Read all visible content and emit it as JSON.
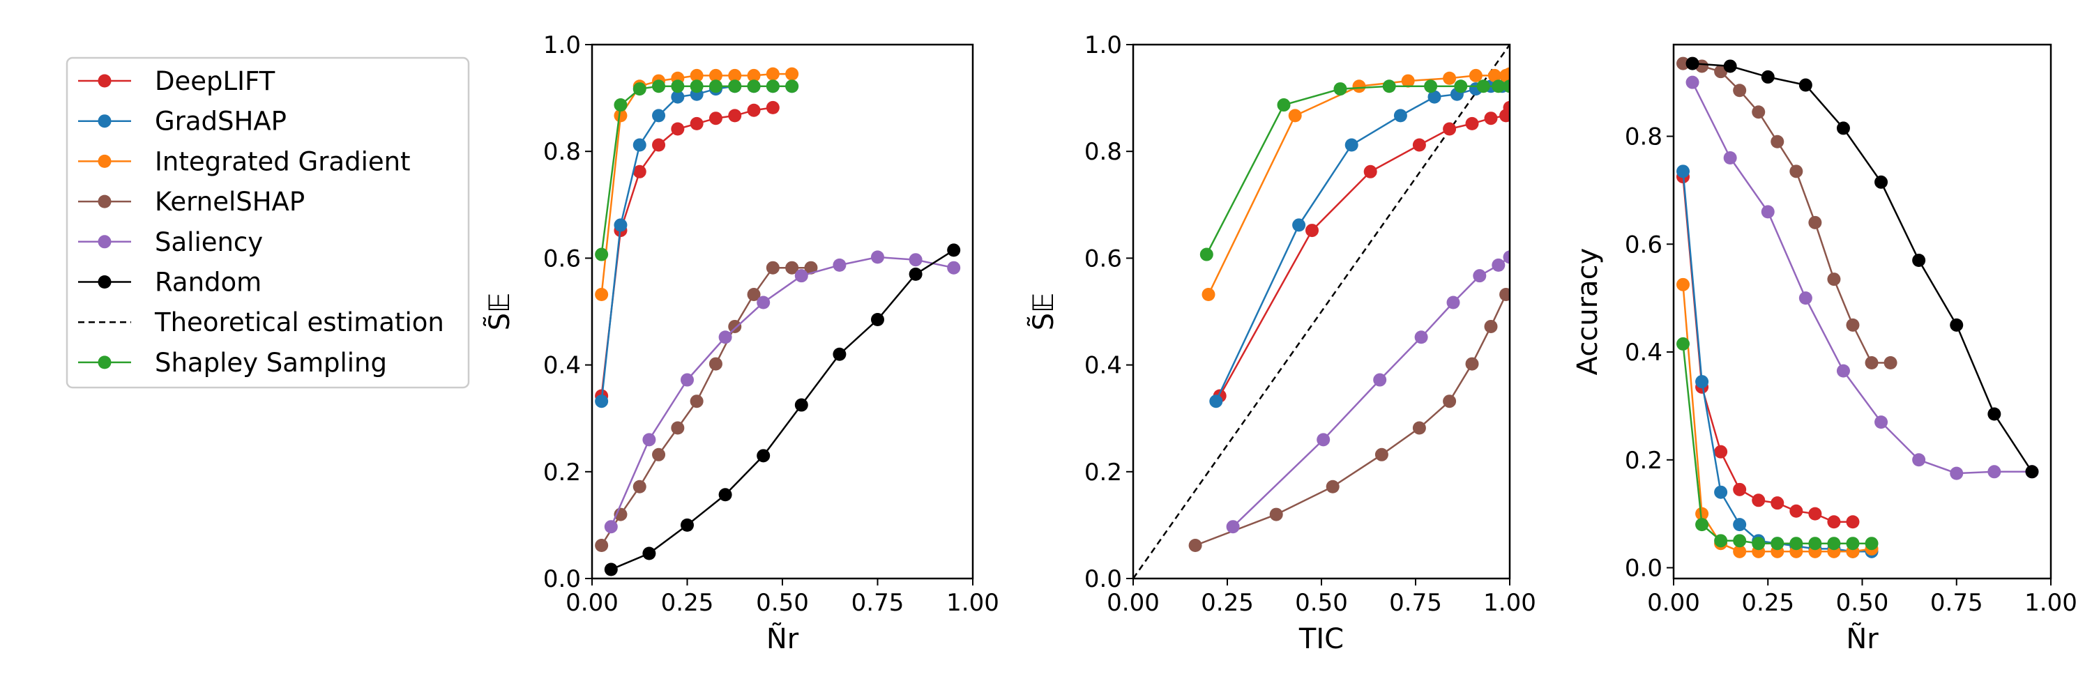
{
  "legend": {
    "entries": [
      {
        "label": "DeepLIFT",
        "color": "#d62728",
        "style": "marker"
      },
      {
        "label": "GradSHAP",
        "color": "#1f77b4",
        "style": "marker"
      },
      {
        "label": "Integrated Gradient",
        "color": "#ff7f0e",
        "style": "marker"
      },
      {
        "label": "KernelSHAP",
        "color": "#8c564b",
        "style": "marker"
      },
      {
        "label": "Saliency",
        "color": "#9467bd",
        "style": "marker"
      },
      {
        "label": "Random",
        "color": "#000000",
        "style": "marker"
      },
      {
        "label": "Theoretical estimation",
        "color": "#000000",
        "style": "dashed"
      },
      {
        "label": "Shapley Sampling",
        "color": "#2ca02c",
        "style": "marker"
      }
    ]
  },
  "chart_data": [
    {
      "type": "line",
      "xlabel": "Ñr",
      "ylabel": "S̃𝔼",
      "xlim": [
        0,
        1
      ],
      "ylim": [
        0,
        1
      ],
      "xticks": [
        "0.00",
        "0.25",
        "0.50",
        "0.75",
        "1.00"
      ],
      "yticks": [
        "0.0",
        "0.2",
        "0.4",
        "0.6",
        "0.8",
        "1.0"
      ],
      "series": [
        {
          "name": "DeepLIFT",
          "color": "#d62728",
          "x": [
            0.025,
            0.075,
            0.125,
            0.175,
            0.225,
            0.275,
            0.325,
            0.375,
            0.425,
            0.475
          ],
          "y": [
            0.342,
            0.652,
            0.762,
            0.812,
            0.842,
            0.852,
            0.862,
            0.867,
            0.877,
            0.882
          ]
        },
        {
          "name": "GradSHAP",
          "color": "#1f77b4",
          "x": [
            0.025,
            0.075,
            0.125,
            0.175,
            0.225,
            0.275,
            0.325,
            0.375,
            0.425,
            0.475,
            0.525
          ],
          "y": [
            0.332,
            0.662,
            0.812,
            0.867,
            0.902,
            0.907,
            0.917,
            0.922,
            0.922,
            0.922,
            0.922
          ]
        },
        {
          "name": "Integrated Gradient",
          "color": "#ff7f0e",
          "x": [
            0.025,
            0.075,
            0.125,
            0.175,
            0.225,
            0.275,
            0.325,
            0.375,
            0.425,
            0.475,
            0.525
          ],
          "y": [
            0.532,
            0.867,
            0.922,
            0.932,
            0.937,
            0.942,
            0.942,
            0.942,
            0.942,
            0.945,
            0.945
          ]
        },
        {
          "name": "KernelSHAP",
          "color": "#8c564b",
          "x": [
            0.025,
            0.075,
            0.125,
            0.175,
            0.225,
            0.275,
            0.325,
            0.375,
            0.425,
            0.475,
            0.525,
            0.575
          ],
          "y": [
            0.062,
            0.12,
            0.172,
            0.232,
            0.282,
            0.332,
            0.402,
            0.472,
            0.532,
            0.582,
            0.582,
            0.582
          ]
        },
        {
          "name": "Saliency",
          "color": "#9467bd",
          "x": [
            0.05,
            0.15,
            0.25,
            0.35,
            0.45,
            0.55,
            0.65,
            0.75,
            0.85,
            0.95
          ],
          "y": [
            0.097,
            0.26,
            0.372,
            0.452,
            0.517,
            0.567,
            0.587,
            0.602,
            0.597,
            0.582
          ]
        },
        {
          "name": "Random",
          "color": "#000000",
          "x": [
            0.05,
            0.15,
            0.25,
            0.35,
            0.45,
            0.55,
            0.65,
            0.75,
            0.85,
            0.95
          ],
          "y": [
            0.017,
            0.047,
            0.1,
            0.157,
            0.23,
            0.325,
            0.42,
            0.485,
            0.57,
            0.615
          ]
        },
        {
          "name": "Shapley Sampling",
          "color": "#2ca02c",
          "x": [
            0.025,
            0.075,
            0.125,
            0.175,
            0.225,
            0.275,
            0.325,
            0.375,
            0.425,
            0.475,
            0.525
          ],
          "y": [
            0.607,
            0.887,
            0.917,
            0.922,
            0.922,
            0.922,
            0.922,
            0.922,
            0.922,
            0.922,
            0.922
          ]
        }
      ]
    },
    {
      "type": "line",
      "xlabel": "TIC",
      "ylabel": "S̃𝔼",
      "xlim": [
        0,
        1
      ],
      "ylim": [
        0,
        1
      ],
      "xticks": [
        "0.00",
        "0.25",
        "0.50",
        "0.75",
        "1.00"
      ],
      "yticks": [
        "0.0",
        "0.2",
        "0.4",
        "0.6",
        "0.8",
        "1.0"
      ],
      "reference_line": {
        "name": "Theoretical estimation",
        "x": [
          0,
          1
        ],
        "y": [
          0,
          1
        ]
      },
      "series": [
        {
          "name": "DeepLIFT",
          "color": "#d62728",
          "x": [
            0.23,
            0.475,
            0.63,
            0.76,
            0.84,
            0.9,
            0.95,
            0.99,
            1.0
          ],
          "y": [
            0.342,
            0.652,
            0.762,
            0.812,
            0.842,
            0.852,
            0.862,
            0.867,
            0.882
          ]
        },
        {
          "name": "GradSHAP",
          "color": "#1f77b4",
          "x": [
            0.22,
            0.44,
            0.58,
            0.71,
            0.8,
            0.86,
            0.91,
            0.95,
            0.98,
            1.0
          ],
          "y": [
            0.332,
            0.662,
            0.812,
            0.867,
            0.902,
            0.907,
            0.917,
            0.922,
            0.922,
            0.922
          ]
        },
        {
          "name": "Integrated Gradient",
          "color": "#ff7f0e",
          "x": [
            0.2,
            0.43,
            0.6,
            0.73,
            0.84,
            0.91,
            0.96,
            0.99,
            1.0
          ],
          "y": [
            0.532,
            0.867,
            0.922,
            0.932,
            0.937,
            0.942,
            0.942,
            0.942,
            0.945
          ]
        },
        {
          "name": "KernelSHAP",
          "color": "#8c564b",
          "x": [
            0.165,
            0.38,
            0.53,
            0.66,
            0.76,
            0.84,
            0.9,
            0.95,
            0.99
          ],
          "y": [
            0.062,
            0.12,
            0.172,
            0.232,
            0.282,
            0.332,
            0.402,
            0.472,
            0.532
          ]
        },
        {
          "name": "Saliency",
          "color": "#9467bd",
          "x": [
            0.265,
            0.505,
            0.655,
            0.765,
            0.85,
            0.92,
            0.97,
            1.0
          ],
          "y": [
            0.097,
            0.26,
            0.372,
            0.452,
            0.517,
            0.567,
            0.587,
            0.602
          ]
        },
        {
          "name": "Shapley Sampling",
          "color": "#2ca02c",
          "x": [
            0.195,
            0.4,
            0.55,
            0.68,
            0.79,
            0.87,
            0.93,
            0.97,
            1.0
          ],
          "y": [
            0.607,
            0.887,
            0.917,
            0.922,
            0.922,
            0.922,
            0.922,
            0.922,
            0.922
          ]
        }
      ]
    },
    {
      "type": "line",
      "xlabel": "Ñr",
      "ylabel": "Accuracy",
      "xlim": [
        0,
        1
      ],
      "ylim": [
        -0.02,
        0.97
      ],
      "xticks": [
        "0.00",
        "0.25",
        "0.50",
        "0.75",
        "1.00"
      ],
      "yticks": [
        "0.0",
        "0.2",
        "0.4",
        "0.6",
        "0.8"
      ],
      "series": [
        {
          "name": "DeepLIFT",
          "color": "#d62728",
          "x": [
            0.025,
            0.075,
            0.125,
            0.175,
            0.225,
            0.275,
            0.325,
            0.375,
            0.425,
            0.475
          ],
          "y": [
            0.725,
            0.335,
            0.215,
            0.145,
            0.125,
            0.12,
            0.105,
            0.1,
            0.085,
            0.085
          ]
        },
        {
          "name": "GradSHAP",
          "color": "#1f77b4",
          "x": [
            0.025,
            0.075,
            0.125,
            0.175,
            0.225,
            0.275,
            0.325,
            0.375,
            0.425,
            0.475,
            0.525
          ],
          "y": [
            0.735,
            0.345,
            0.14,
            0.08,
            0.05,
            0.045,
            0.04,
            0.035,
            0.035,
            0.03,
            0.03
          ]
        },
        {
          "name": "Integrated Gradient",
          "color": "#ff7f0e",
          "x": [
            0.025,
            0.075,
            0.125,
            0.175,
            0.225,
            0.275,
            0.325,
            0.375,
            0.425,
            0.475,
            0.525
          ],
          "y": [
            0.525,
            0.1,
            0.045,
            0.03,
            0.03,
            0.03,
            0.03,
            0.03,
            0.03,
            0.03,
            0.035
          ]
        },
        {
          "name": "KernelSHAP",
          "color": "#8c564b",
          "x": [
            0.025,
            0.075,
            0.125,
            0.175,
            0.225,
            0.275,
            0.325,
            0.375,
            0.425,
            0.475,
            0.525,
            0.575
          ],
          "y": [
            0.935,
            0.93,
            0.92,
            0.885,
            0.845,
            0.79,
            0.735,
            0.64,
            0.535,
            0.45,
            0.38,
            0.38
          ]
        },
        {
          "name": "Saliency",
          "color": "#9467bd",
          "x": [
            0.05,
            0.15,
            0.25,
            0.35,
            0.45,
            0.55,
            0.65,
            0.75,
            0.85,
            0.95
          ],
          "y": [
            0.9,
            0.76,
            0.66,
            0.5,
            0.365,
            0.27,
            0.2,
            0.175,
            0.178,
            0.178
          ]
        },
        {
          "name": "Random",
          "color": "#000000",
          "x": [
            0.05,
            0.15,
            0.25,
            0.35,
            0.45,
            0.55,
            0.65,
            0.75,
            0.85,
            0.95
          ],
          "y": [
            0.935,
            0.93,
            0.91,
            0.895,
            0.815,
            0.715,
            0.57,
            0.45,
            0.285,
            0.178
          ]
        },
        {
          "name": "Shapley Sampling",
          "color": "#2ca02c",
          "x": [
            0.025,
            0.075,
            0.125,
            0.175,
            0.225,
            0.275,
            0.325,
            0.375,
            0.425,
            0.475,
            0.525
          ],
          "y": [
            0.415,
            0.08,
            0.05,
            0.05,
            0.045,
            0.045,
            0.045,
            0.045,
            0.045,
            0.045,
            0.045
          ]
        }
      ]
    }
  ]
}
